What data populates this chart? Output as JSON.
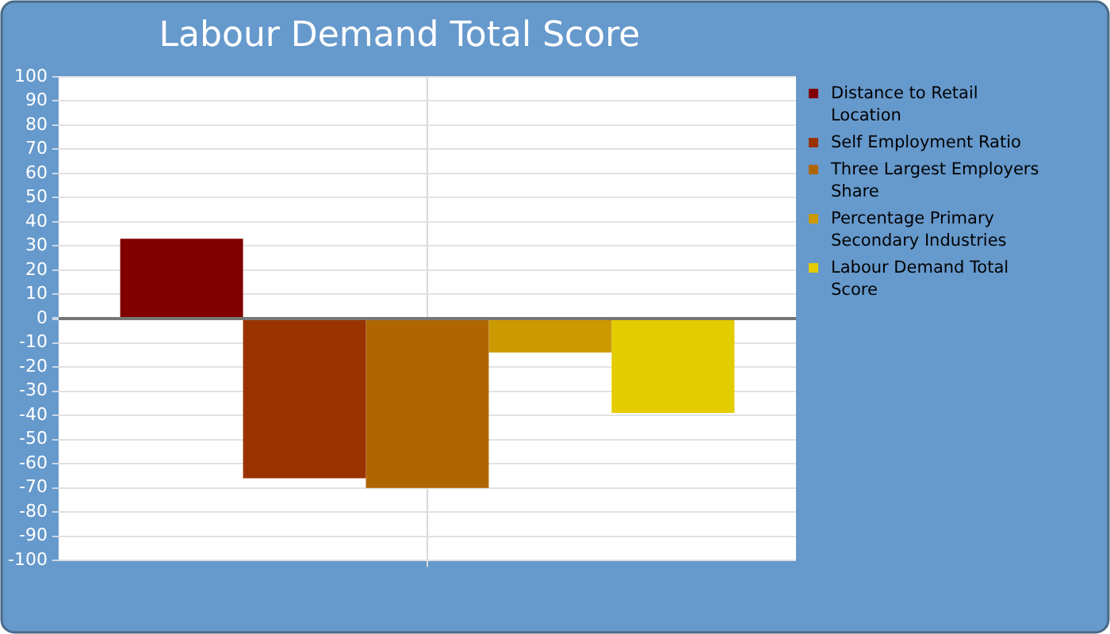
{
  "chart_data": {
    "type": "bar",
    "title": "Labour Demand Total Score",
    "categories": [
      null
    ],
    "series": [
      {
        "name": "Distance to Retail Location",
        "color": "#800000",
        "values": [
          33
        ]
      },
      {
        "name": "Self Employment Ratio",
        "color": "#993300",
        "values": [
          -66
        ]
      },
      {
        "name": "Three Largest Employers Share",
        "color": "#b06600",
        "values": [
          -70
        ]
      },
      {
        "name": "Percentage Primary Secondary Industries",
        "color": "#cc9900",
        "values": [
          -14
        ]
      },
      {
        "name": "Labour Demand Total Score",
        "color": "#e3cc00",
        "values": [
          -39
        ]
      }
    ],
    "ylim": [
      -100,
      100
    ],
    "yticks": [
      -100,
      -90,
      -80,
      -70,
      -60,
      -50,
      -40,
      -30,
      -20,
      -10,
      0,
      10,
      20,
      30,
      40,
      50,
      60,
      70,
      80,
      90,
      100
    ],
    "grid": true,
    "legend": "right"
  }
}
